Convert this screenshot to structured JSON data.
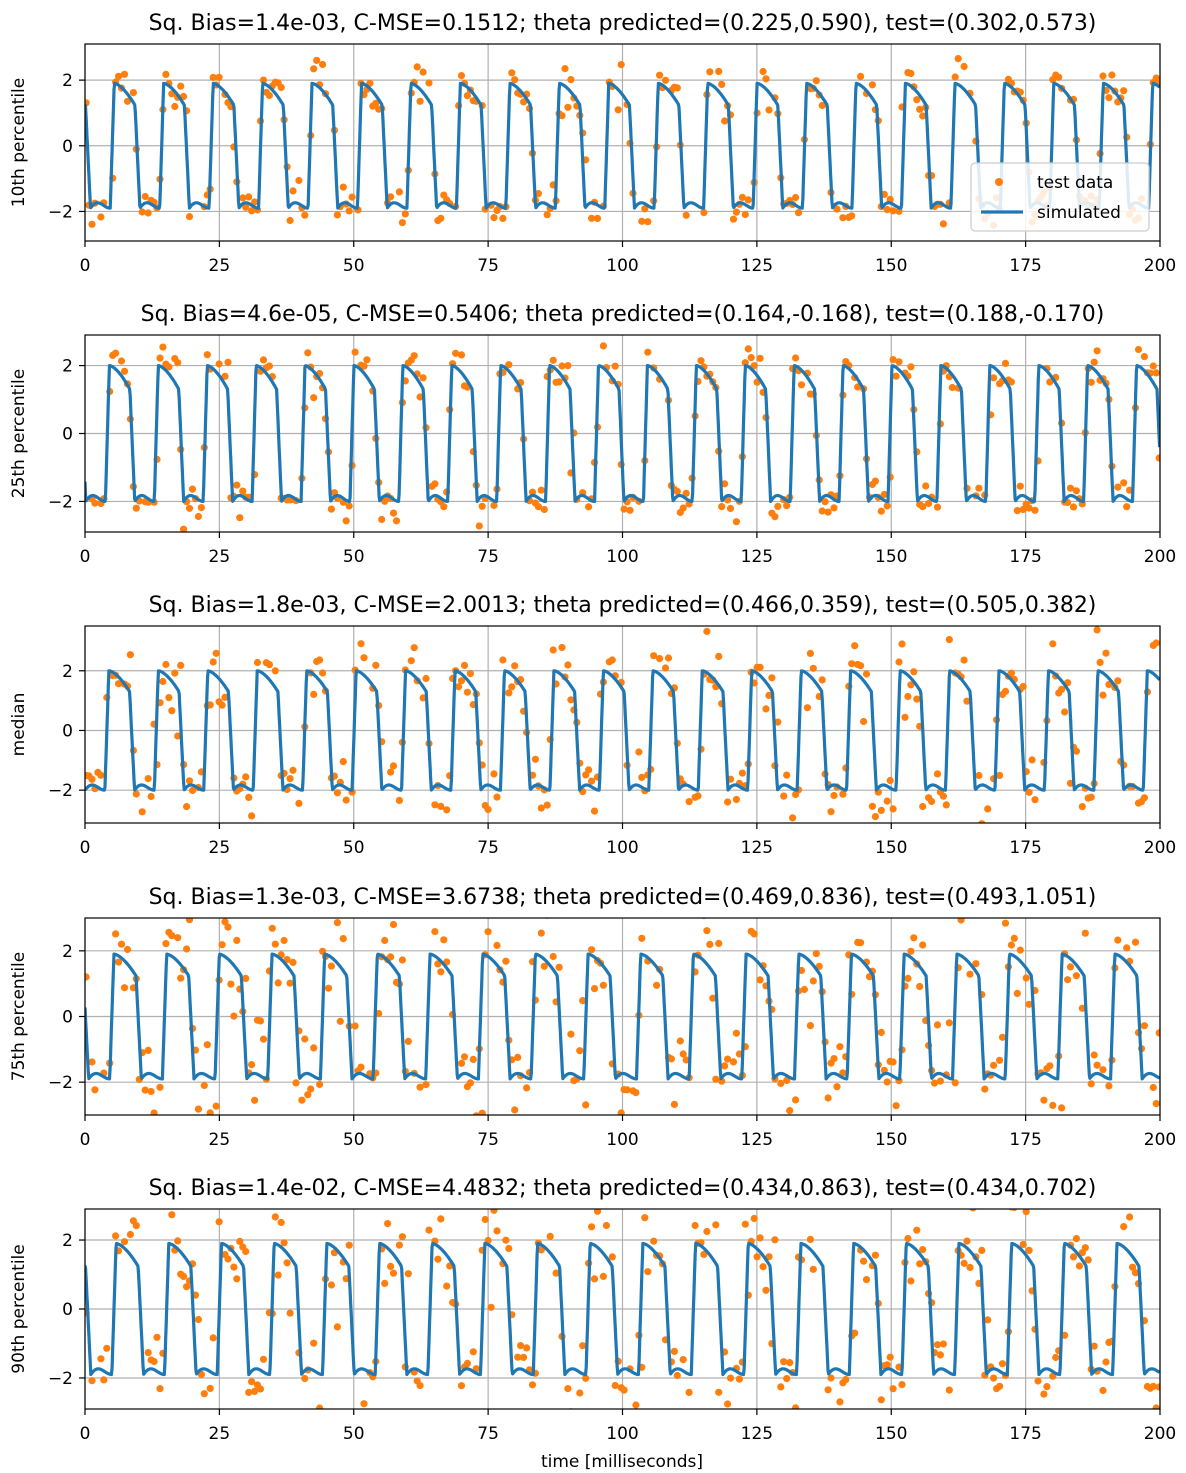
{
  "figure": {
    "xlabel": "time [milliseconds]",
    "colors": {
      "data": "#ff7f0e",
      "sim": "#1f77b4",
      "grid": "#b0b0b0"
    }
  },
  "legend": {
    "data_label": "test data",
    "sim_label": "simulated",
    "placement": "right",
    "panel": 0
  },
  "chart_data": [
    {
      "type": "line",
      "title": "Sq. Bias=1.4e-03, C-MSE=0.1512; theta predicted=(0.225,0.590), test=(0.302,0.573)",
      "ylabel": "10th percentile",
      "xlim": [
        0,
        200
      ],
      "ylim": [
        -2.9,
        3.1
      ],
      "xticks": [
        "0",
        "25",
        "50",
        "75",
        "100",
        "125",
        "150",
        "175",
        "200"
      ],
      "yticks": [
        "−2",
        "0",
        "2"
      ],
      "ytick_values": [
        -2,
        0,
        2
      ],
      "grid": true,
      "series": [
        {
          "name": "simulated",
          "kind": "oscillation",
          "period": 9.2,
          "phase": 4.7,
          "amplitude": 1.9
        },
        {
          "name": "test data",
          "kind": "scatter",
          "jitter": 0.3
        }
      ]
    },
    {
      "type": "line",
      "title": "Sq. Bias=4.6e-05, C-MSE=0.5406; theta predicted=(0.164,-0.168), test=(0.188,-0.170)",
      "ylabel": "25th percentile",
      "xlim": [
        0,
        200
      ],
      "ylim": [
        -2.9,
        2.9
      ],
      "xticks": [
        "0",
        "25",
        "50",
        "75",
        "100",
        "125",
        "150",
        "175",
        "200"
      ],
      "yticks": [
        "−2",
        "0",
        "2"
      ],
      "ytick_values": [
        -2,
        0,
        2
      ],
      "grid": true,
      "series": [
        {
          "name": "simulated",
          "kind": "oscillation",
          "period": 9.1,
          "phase": 3.8,
          "amplitude": 2.0
        },
        {
          "name": "test data",
          "kind": "scatter",
          "jitter": 0.3
        }
      ]
    },
    {
      "type": "line",
      "title": "Sq. Bias=1.8e-03, C-MSE=2.0013; theta predicted=(0.466,0.359), test=(0.505,0.382)",
      "ylabel": "median",
      "xlim": [
        0,
        200
      ],
      "ylim": [
        -3.1,
        3.5
      ],
      "xticks": [
        "0",
        "25",
        "50",
        "75",
        "100",
        "125",
        "150",
        "175",
        "200"
      ],
      "yticks": [
        "−2",
        "0",
        "2"
      ],
      "ytick_values": [
        -2,
        0,
        2
      ],
      "grid": true,
      "series": [
        {
          "name": "simulated",
          "kind": "oscillation",
          "period": 9.2,
          "phase": 3.7,
          "amplitude": 2.0
        },
        {
          "name": "test data",
          "kind": "scatter",
          "jitter": 0.55
        }
      ]
    },
    {
      "type": "line",
      "title": "Sq. Bias=1.3e-03, C-MSE=3.6738; theta predicted=(0.469,0.836), test=(0.493,1.051)",
      "ylabel": "75th percentile",
      "xlim": [
        0,
        200
      ],
      "ylim": [
        -3.0,
        3.0
      ],
      "xticks": [
        "0",
        "25",
        "50",
        "75",
        "100",
        "125",
        "150",
        "175",
        "200"
      ],
      "yticks": [
        "−2",
        "0",
        "2"
      ],
      "ytick_values": [
        -2,
        0,
        2
      ],
      "grid": true,
      "series": [
        {
          "name": "simulated",
          "kind": "oscillation",
          "period": 9.8,
          "phase": 4.6,
          "amplitude": 1.9
        },
        {
          "name": "test data",
          "kind": "scatter",
          "jitter": 0.7
        }
      ]
    },
    {
      "type": "line",
      "title": "Sq. Bias=1.4e-02, C-MSE=4.4832; theta predicted=(0.434,0.863), test=(0.434,0.702)",
      "ylabel": "90th percentile",
      "xlim": [
        0,
        200
      ],
      "ylim": [
        -2.9,
        2.9
      ],
      "xticks": [
        "0",
        "25",
        "50",
        "75",
        "100",
        "125",
        "150",
        "175",
        "200"
      ],
      "yticks": [
        "−2",
        "0",
        "2"
      ],
      "ytick_values": [
        -2,
        0,
        2
      ],
      "grid": true,
      "series": [
        {
          "name": "simulated",
          "kind": "oscillation",
          "period": 9.8,
          "phase": 5.0,
          "amplitude": 1.9
        },
        {
          "name": "test data",
          "kind": "scatter",
          "jitter": 0.7
        }
      ]
    }
  ]
}
